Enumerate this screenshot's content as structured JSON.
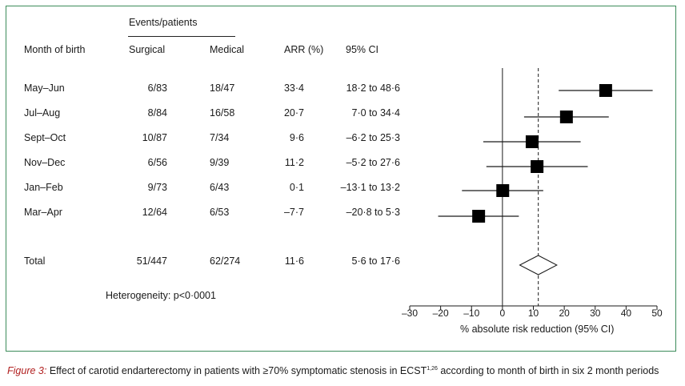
{
  "table": {
    "group_header": "Events/patients",
    "columns": {
      "subgroup": "Month of birth",
      "surgical": "Surgical",
      "medical": "Medical",
      "arr": "ARR (%)",
      "ci": "95% CI"
    },
    "rows": [
      {
        "label": "May–Jun",
        "surgical": "6/83",
        "medical": "18/47",
        "arr": "33·4",
        "ci": "18·2 to 48·6"
      },
      {
        "label": "Jul–Aug",
        "surgical": "8/84",
        "medical": "16/58",
        "arr": "20·7",
        "ci": "7·0 to 34·4"
      },
      {
        "label": "Sept–Oct",
        "surgical": "10/87",
        "medical": "7/34",
        "arr": "9·6",
        "ci": "–6·2 to 25·3"
      },
      {
        "label": "Nov–Dec",
        "surgical": "6/56",
        "medical": "9/39",
        "arr": "11·2",
        "ci": "–5·2 to 27·6"
      },
      {
        "label": "Jan–Feb",
        "surgical": "9/73",
        "medical": "6/43",
        "arr": "0·1",
        "ci": "–13·1 to 13·2"
      },
      {
        "label": "Mar–Apr",
        "surgical": "12/64",
        "medical": "6/53",
        "arr": "–7·7",
        "ci": "–20·8 to 5·3"
      }
    ],
    "total": {
      "label": "Total",
      "surgical": "51/447",
      "medical": "62/274",
      "arr": "11·6",
      "ci": "5·6 to 17·6"
    },
    "heterogeneity": "Heterogeneity: p<0·0001"
  },
  "chart_data": {
    "type": "forest",
    "xlabel": "% absolute risk reduction (95% CI)",
    "xlim": [
      -30,
      50
    ],
    "xticks": [
      -30,
      -20,
      -10,
      0,
      10,
      20,
      30,
      40,
      50
    ],
    "xtick_labels": [
      "–30",
      "–20",
      "–10",
      "0",
      "10",
      "20",
      "30",
      "40",
      "50"
    ],
    "reference_line": 0,
    "overall_dashed_line": 11.6,
    "points": [
      {
        "label": "May–Jun",
        "estimate": 33.4,
        "ci_low": 18.2,
        "ci_high": 48.6
      },
      {
        "label": "Jul–Aug",
        "estimate": 20.7,
        "ci_low": 7.0,
        "ci_high": 34.4
      },
      {
        "label": "Sept–Oct",
        "estimate": 9.6,
        "ci_low": -6.2,
        "ci_high": 25.3
      },
      {
        "label": "Nov–Dec",
        "estimate": 11.2,
        "ci_low": -5.2,
        "ci_high": 27.6
      },
      {
        "label": "Jan–Feb",
        "estimate": 0.1,
        "ci_low": -13.1,
        "ci_high": 13.2
      },
      {
        "label": "Mar–Apr",
        "estimate": -7.7,
        "ci_low": -20.8,
        "ci_high": 5.3
      }
    ],
    "overall": {
      "label": "Total",
      "estimate": 11.6,
      "ci_low": 5.6,
      "ci_high": 17.6
    }
  },
  "caption": {
    "figure_label": "Figure 3:",
    "text_before": " Effect of carotid endarterectomy in patients with ≥70% symptomatic stenosis in ECST",
    "superscript": "1,26",
    "text_after": " according to month of birth in six 2 month periods"
  },
  "colors": {
    "border": "#3c8c5a",
    "caption_label": "#b22222",
    "ink": "#1a1a1a"
  }
}
